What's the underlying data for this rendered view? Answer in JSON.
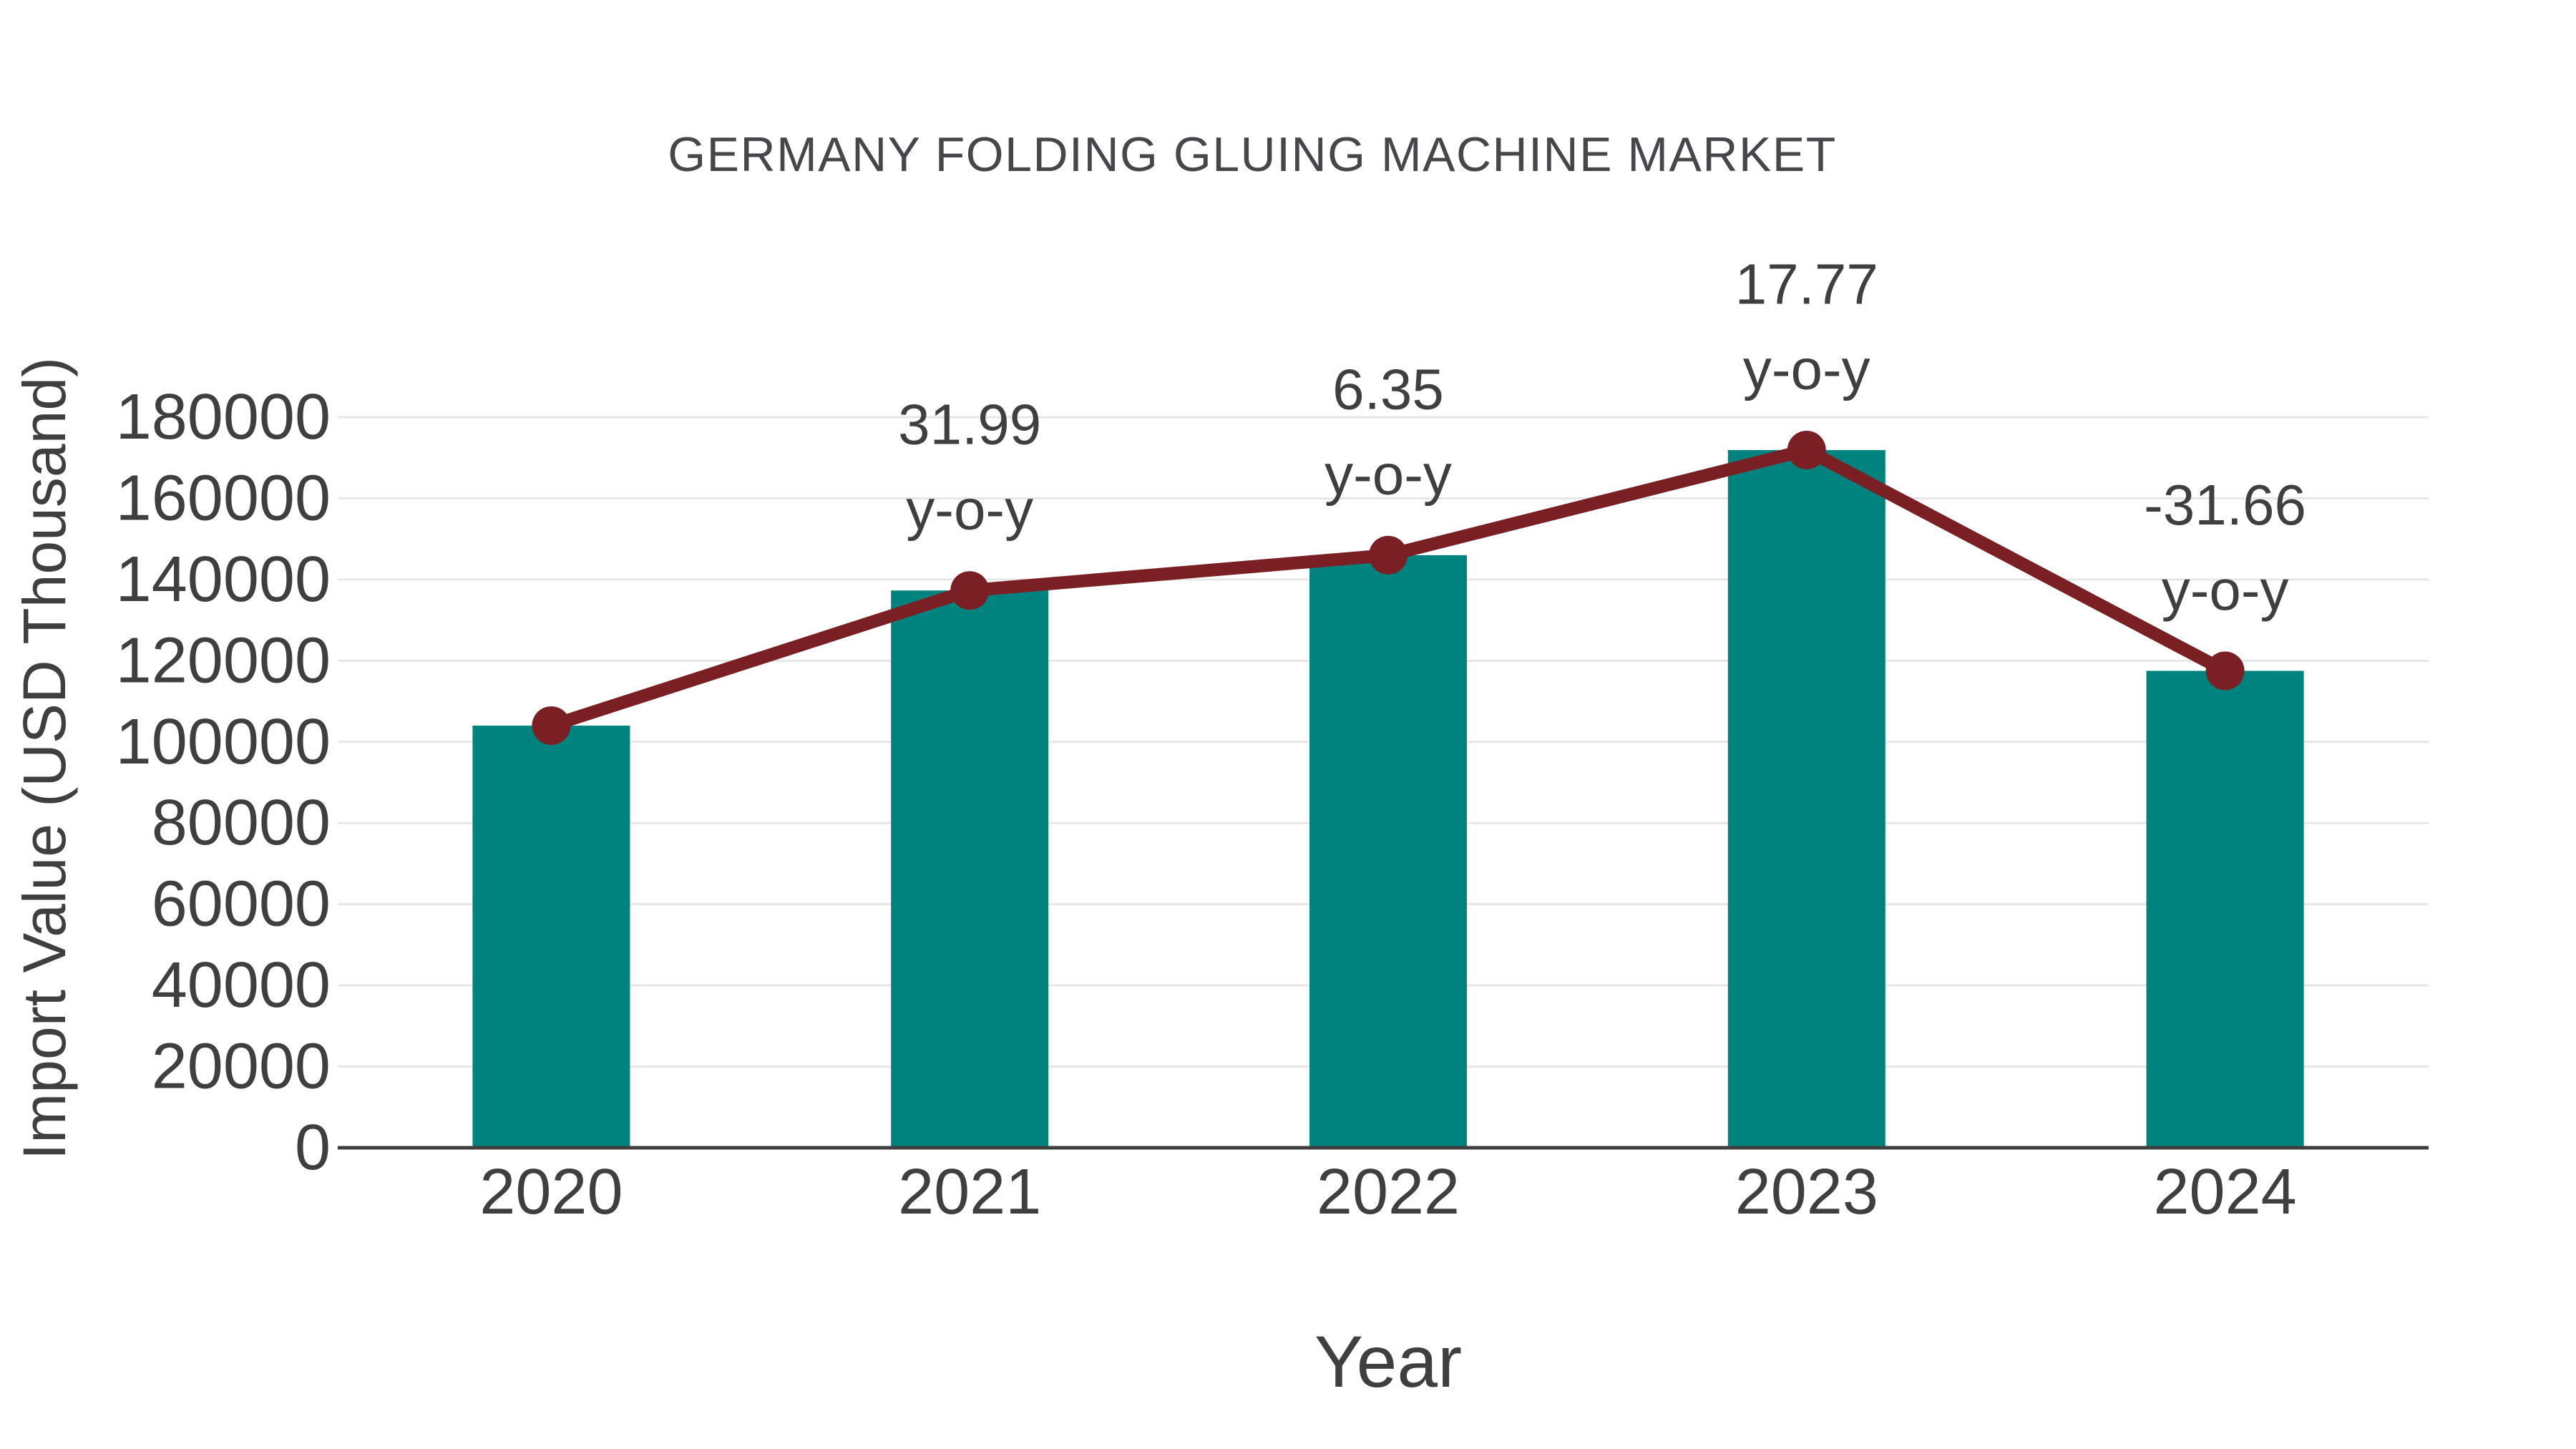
{
  "chart_data": {
    "type": "bar",
    "title": "GERMANY FOLDING GLUING MACHINE MARKET",
    "xlabel": "Year",
    "ylabel": "Import Value (USD Thousand)",
    "categories": [
      "2020",
      "2021",
      "2022",
      "2023",
      "2024"
    ],
    "series": [
      {
        "name": "Import Value (USD Thousand)",
        "type": "bar",
        "color": "#00827E",
        "values": [
          104000,
          137300,
          146000,
          171900,
          117500
        ]
      },
      {
        "name": "y-o-y change (%)",
        "type": "line",
        "color": "#7A1F23",
        "values_pct": [
          null,
          31.99,
          6.35,
          17.77,
          -31.66
        ],
        "anchored_to_bar_values": true
      }
    ],
    "point_labels": [
      null,
      "31.99\ny-o-y",
      "6.35\ny-o-y",
      "17.77\ny-o-y",
      "-31.66\ny-o-y"
    ],
    "ylim": [
      0,
      180000
    ],
    "yticks": [
      0,
      20000,
      40000,
      60000,
      80000,
      100000,
      120000,
      140000,
      160000,
      180000
    ],
    "grid": "horizontal",
    "legend": "none",
    "colors": {
      "bar": "#00827E",
      "line": "#7A1F23",
      "marker": "#7A1F23",
      "text": "#3f3f3f",
      "gridline": "#e7e7e7",
      "axis": "#3f3f3f",
      "background": "#ffffff"
    }
  }
}
